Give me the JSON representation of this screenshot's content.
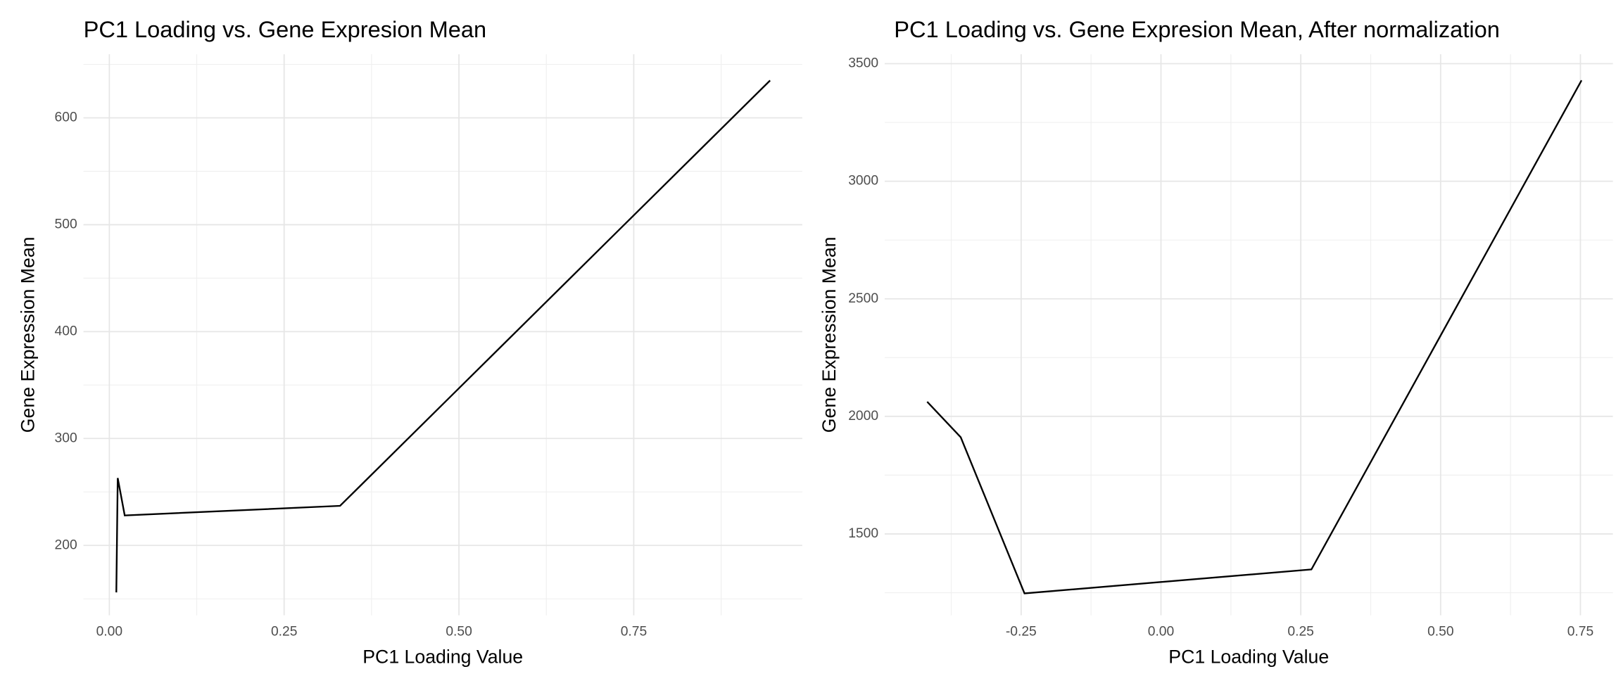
{
  "chart_data": [
    {
      "type": "line",
      "title": "PC1 Loading vs. Gene Expresion Mean",
      "x_label": "PC1 Loading Value",
      "y_label": "Gene Expression Mean",
      "x": [
        0.01,
        0.012,
        0.022,
        0.33,
        0.945
      ],
      "series": [
        {
          "color": "#000000",
          "values": [
            156,
            263,
            228,
            237,
            635
          ]
        }
      ],
      "xlim": [
        -0.037,
        0.991
      ],
      "ylim": [
        134.6,
        659.5
      ],
      "xticks": [
        {
          "value": 0,
          "label": "0.00"
        },
        {
          "value": 0.25,
          "label": "0.25"
        },
        {
          "value": 0.5,
          "label": "0.50"
        },
        {
          "value": 0.75,
          "label": "0.75"
        }
      ],
      "yticks": [
        200,
        300,
        400,
        500,
        600
      ],
      "grid": true
    },
    {
      "type": "line",
      "title": "PC1 Loading vs. Gene Expresion Mean, After normalization",
      "x_label": "PC1 Loading Value",
      "y_label": "Gene Expression Mean",
      "x": [
        -0.418,
        -0.358,
        -0.244,
        0.269,
        0.752
      ],
      "series": [
        {
          "color": "#000000",
          "values": [
            2062,
            1911,
            1247,
            1349,
            3429
          ]
        }
      ],
      "xlim": [
        -0.494,
        0.808
      ],
      "ylim": [
        1154,
        3540
      ],
      "xticks": [
        {
          "value": -0.25,
          "label": "-0.25"
        },
        {
          "value": 0,
          "label": "0.00"
        },
        {
          "value": 0.25,
          "label": "0.25"
        },
        {
          "value": 0.5,
          "label": "0.50"
        },
        {
          "value": 0.75,
          "label": "0.75"
        }
      ],
      "yticks": [
        1500,
        2000,
        2500,
        3000,
        3500
      ],
      "grid": true
    }
  ]
}
